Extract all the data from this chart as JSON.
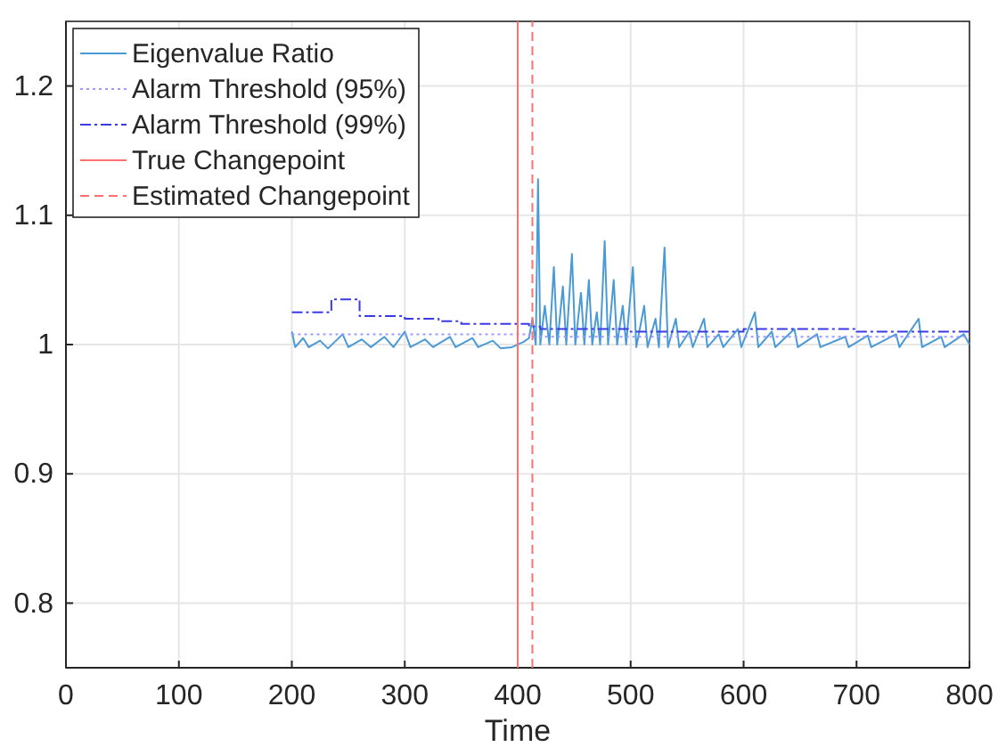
{
  "chart_data": {
    "type": "line",
    "xlabel": "Time",
    "xlim": [
      0,
      800
    ],
    "xticks": [
      0,
      100,
      200,
      300,
      400,
      500,
      600,
      700,
      800
    ],
    "ylim": [
      0.75,
      1.25
    ],
    "yticks": [
      0.8,
      0.9,
      1,
      1.1,
      1.2
    ],
    "grid": true,
    "legend": "top left",
    "series": [
      {
        "name": "Eigenvalue Ratio",
        "color": "#4a9ad6",
        "line_style": "solid",
        "x": [
          200,
          203,
          210,
          215,
          225,
          232,
          245,
          250,
          262,
          270,
          282,
          290,
          300,
          305,
          318,
          325,
          340,
          345,
          360,
          365,
          378,
          385,
          395,
          405,
          410,
          413,
          416,
          418,
          420,
          424,
          428,
          432,
          435,
          440,
          443,
          448,
          451,
          456,
          459,
          463,
          466,
          470,
          473,
          477,
          480,
          485,
          488,
          493,
          496,
          502,
          505,
          512,
          515,
          522,
          525,
          530,
          533,
          540,
          543,
          552,
          555,
          565,
          568,
          578,
          582,
          595,
          598,
          610,
          613,
          625,
          628,
          645,
          648,
          665,
          668,
          690,
          693,
          710,
          713,
          735,
          738,
          755,
          758,
          775,
          778,
          795,
          800
        ],
        "values": [
          1.01,
          0.998,
          1.005,
          0.998,
          1.003,
          0.997,
          1.008,
          0.998,
          1.004,
          0.998,
          1.006,
          0.998,
          1.01,
          0.998,
          1.004,
          0.998,
          1.006,
          0.998,
          1.005,
          0.998,
          1.003,
          0.997,
          0.998,
          1.002,
          1.005,
          1.02,
          1.0,
          1.128,
          1.0,
          1.03,
          1.0,
          1.06,
          1.0,
          1.045,
          1.0,
          1.07,
          1.0,
          1.04,
          1.0,
          1.05,
          1.0,
          1.025,
          1.0,
          1.08,
          1.0,
          1.05,
          1.0,
          1.03,
          1.0,
          1.06,
          0.998,
          1.03,
          0.998,
          1.02,
          0.998,
          1.075,
          0.998,
          1.02,
          0.998,
          1.01,
          0.998,
          1.02,
          0.998,
          1.008,
          0.998,
          1.012,
          0.998,
          1.025,
          0.998,
          1.01,
          0.998,
          1.012,
          0.998,
          1.008,
          0.998,
          1.006,
          0.998,
          1.007,
          0.998,
          1.008,
          0.998,
          1.02,
          0.998,
          1.006,
          0.998,
          1.008,
          1.0
        ]
      },
      {
        "name": "Alarm Threshold (95%)",
        "type": "step",
        "color": "#9a9aff",
        "line_style": "dotted",
        "x": [
          200,
          410,
          800
        ],
        "values": [
          1.008,
          1.006,
          1.006
        ]
      },
      {
        "name": "Alarm Threshold (99%)",
        "type": "step",
        "color": "#3a3ae6",
        "line_style": "dashdot",
        "x": [
          200,
          235,
          260,
          300,
          330,
          350,
          410,
          420,
          500,
          600,
          700,
          800
        ],
        "values": [
          1.025,
          1.035,
          1.022,
          1.02,
          1.018,
          1.016,
          1.014,
          1.012,
          1.01,
          1.012,
          1.01,
          1.01
        ]
      },
      {
        "name": "True Changepoint",
        "color": "#ff7070",
        "line_style": "solid",
        "x": [
          400,
          400
        ],
        "values": [
          0.75,
          1.25
        ]
      },
      {
        "name": "Estimated Changepoint",
        "color": "#ff7070",
        "line_style": "dashed",
        "x": [
          413,
          413
        ],
        "values": [
          0.75,
          1.25
        ]
      }
    ]
  }
}
